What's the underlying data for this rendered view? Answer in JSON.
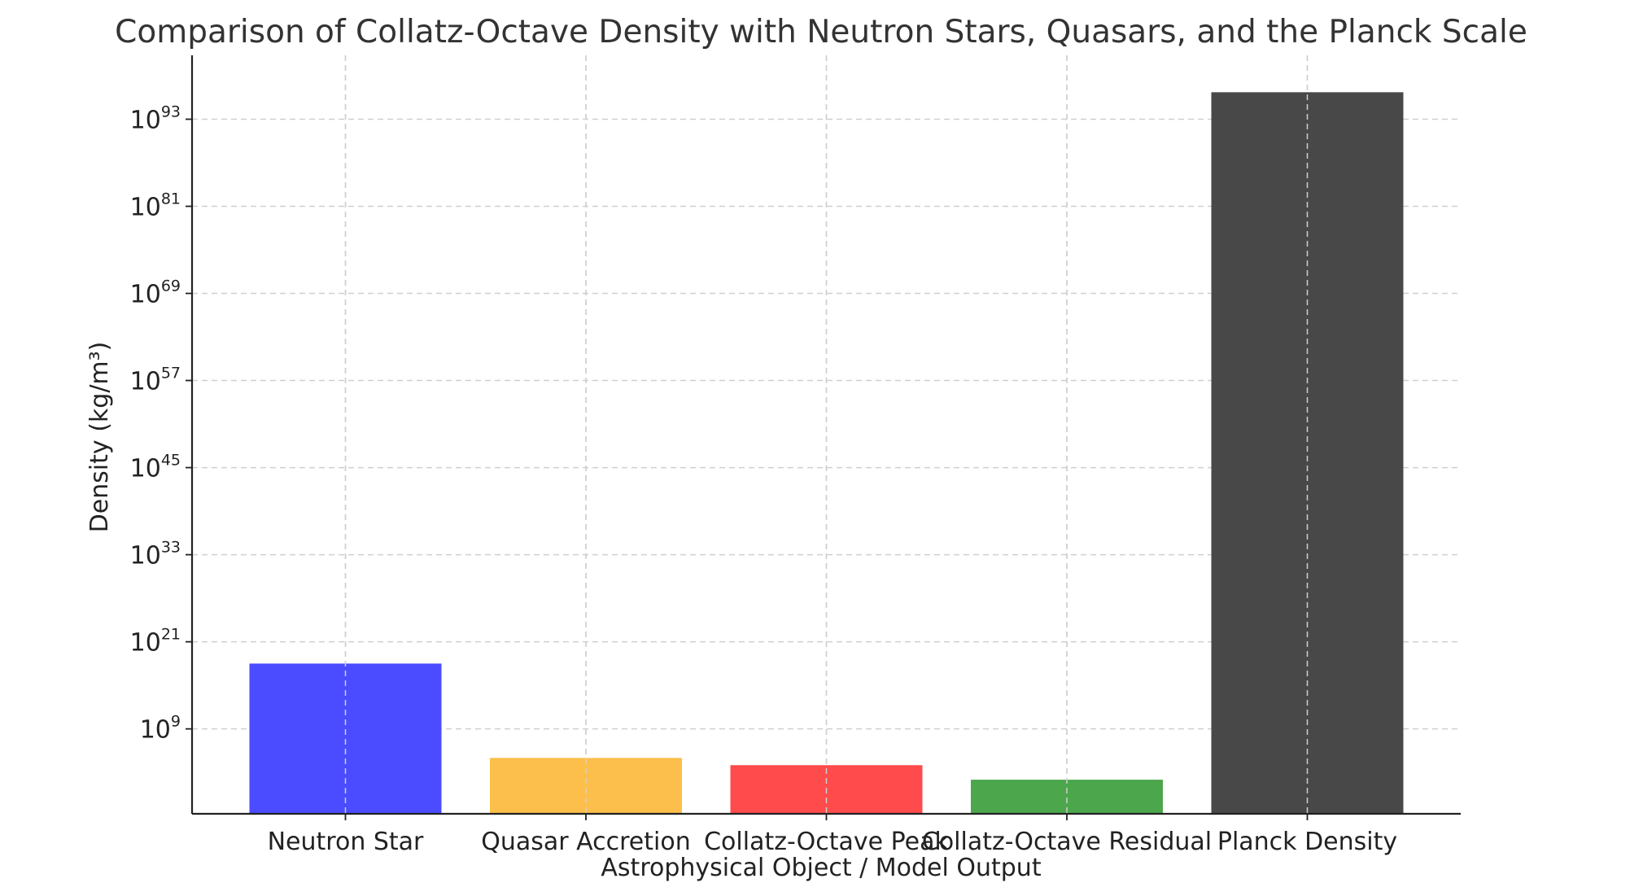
{
  "chart_data": {
    "type": "bar",
    "title": "Comparison of Collatz-Octave Density with Neutron Stars, Quasars, and the Planck Scale",
    "xlabel": "Astrophysical Object / Model Output",
    "ylabel": "Density (kg/m³)",
    "yscale": "log",
    "ylim_exponent": [
      -2.7,
      101.8
    ],
    "yticks": [
      {
        "base": "10",
        "exp": "9"
      },
      {
        "base": "10",
        "exp": "21"
      },
      {
        "base": "10",
        "exp": "33"
      },
      {
        "base": "10",
        "exp": "45"
      },
      {
        "base": "10",
        "exp": "57"
      },
      {
        "base": "10",
        "exp": "69"
      },
      {
        "base": "10",
        "exp": "81"
      },
      {
        "base": "10",
        "exp": "93"
      }
    ],
    "categories": [
      "Neutron Star",
      "Quasar Accretion",
      "Collatz-Octave Peak",
      "Collatz-Octave Residual",
      "Planck Density"
    ],
    "values": [
      1e+18,
      100000.0,
      10000.0,
      100.0,
      5.2e+96
    ],
    "colors": [
      "#4b4bff",
      "#fdbf4b",
      "#ff4b4b",
      "#4ca64c",
      "#484848"
    ],
    "grid": true
  }
}
